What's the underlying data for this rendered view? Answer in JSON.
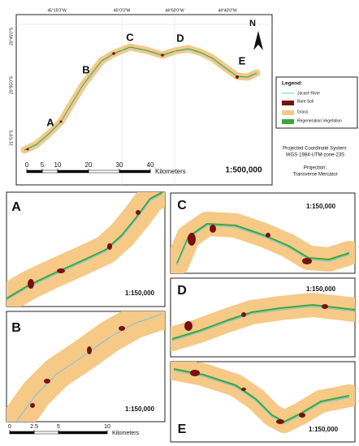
{
  "main_map": {
    "graticule_top": [
      "45°15'0\"W",
      "45°0'0\"W",
      "44°50'0\"W",
      "44°40'0\"W"
    ],
    "graticule_left": [
      "20°45'0\"S",
      "20°55'0\"S",
      "21°5'0\"S"
    ],
    "site_labels": [
      "A",
      "B",
      "C",
      "D",
      "E"
    ],
    "north": "N",
    "scale_bar": {
      "ticks": [
        0,
        5,
        10,
        20,
        30,
        40
      ],
      "unit": "Kilometers"
    },
    "scale": "1:500,000"
  },
  "legend": {
    "title": "Legend:",
    "items": [
      "Jacaré River",
      "Bare Soil",
      "Grass",
      "Regeneration Vegetation"
    ]
  },
  "coordinate_system": {
    "label": "Projected Coordinate System:",
    "value": "WGS-1984-UTM-zone-23S",
    "projection_label": "Projection:",
    "projection": "Transverse Mercator"
  },
  "insets": [
    {
      "label": "A",
      "scale": "1:150,000"
    },
    {
      "label": "B",
      "scale": "1:150,000"
    },
    {
      "label": "C",
      "scale": "1:150,000"
    },
    {
      "label": "D",
      "scale": "1:150,000"
    },
    {
      "label": "E",
      "scale": "1:150,000"
    }
  ],
  "inset_scale_bar": {
    "ticks": [
      0,
      2.5,
      5,
      10
    ],
    "unit": "Kilometers"
  }
}
